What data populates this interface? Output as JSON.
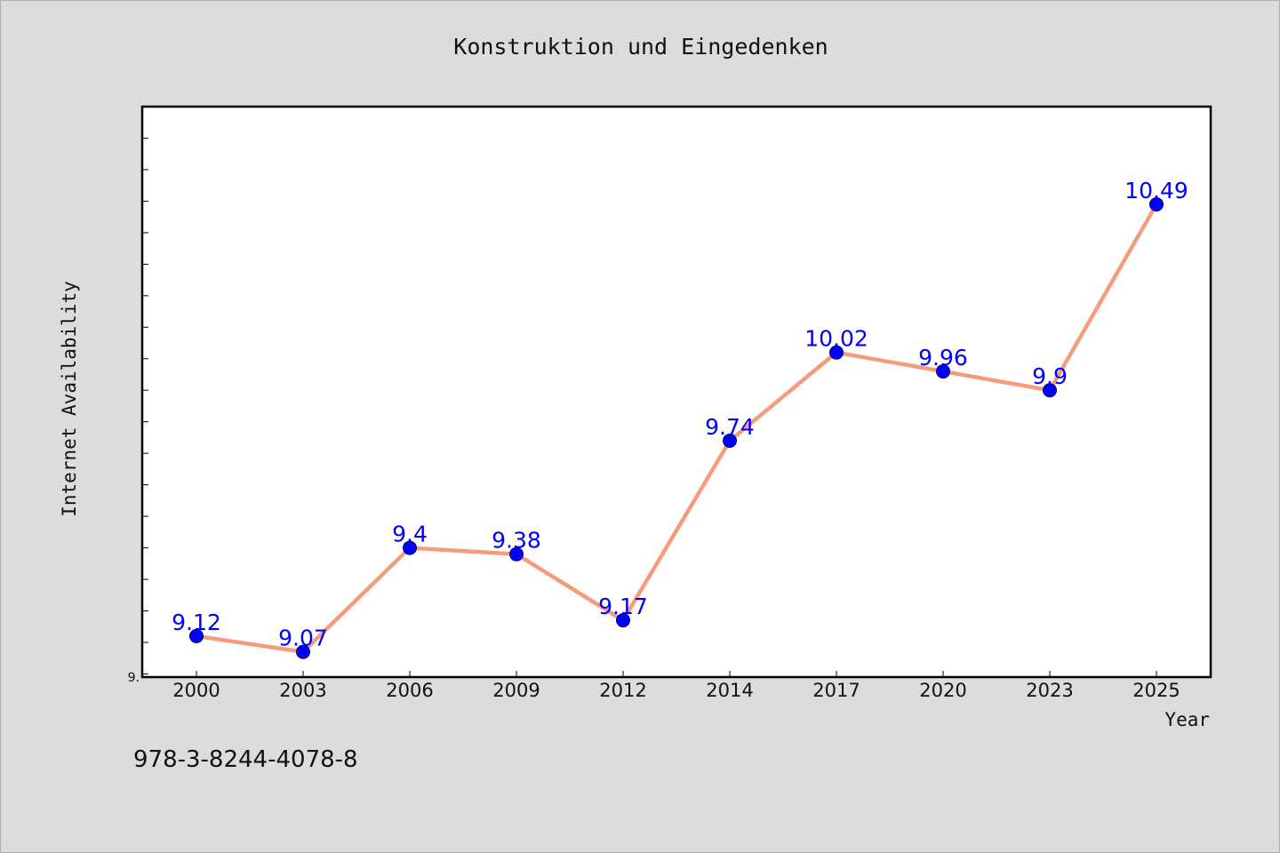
{
  "chart_data": {
    "type": "line",
    "title": "Konstruktion und Eingedenken",
    "xlabel": "Year",
    "ylabel": "Internet Availability",
    "categories": [
      "2000",
      "2003",
      "2006",
      "2009",
      "2012",
      "2014",
      "2017",
      "2020",
      "2023",
      "2025"
    ],
    "series": [
      {
        "values": [
          9.12,
          9.07,
          9.4,
          9.38,
          9.17,
          9.74,
          10.02,
          9.96,
          9.9,
          10.49
        ]
      }
    ],
    "data_labels": [
      "9.12",
      "9.07",
      "9.4",
      "9.38",
      "9.17",
      "9.74",
      "10.02",
      "9.96",
      "9.9",
      "10.49"
    ],
    "ytick_labels": [
      "9."
    ],
    "ylim": [
      8.99,
      10.8
    ],
    "grid": false,
    "legend": "none",
    "colors": {
      "line": "#f59c7c",
      "marker": "#0000ff",
      "label": "#0000ff",
      "background": "#dcdcdc",
      "plot_background": "#ffffff"
    }
  },
  "footer": {
    "isbn": "978-3-8244-4078-8"
  }
}
